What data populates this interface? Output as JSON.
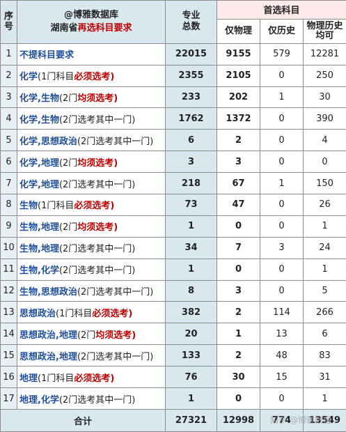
{
  "header": {
    "col_index": "序号",
    "brand_line1": "@博雅数据库",
    "brand_line2_pre": "湖南省",
    "brand_line2_red": "再选科目要求",
    "col_total": "专业总数",
    "group_first": "首选科目",
    "col_physics": "仅物理",
    "col_history": "仅历史",
    "col_both": "物理历史均可"
  },
  "rows": [
    {
      "idx": "1",
      "subj": "不提科目要求",
      "note": "",
      "req": "",
      "total": "22015",
      "physics": "9155",
      "history": "579",
      "both": "12281"
    },
    {
      "idx": "2",
      "subj": "化学",
      "note": "(1门科目",
      "req": "必须选考)",
      "total": "2355",
      "physics": "2105",
      "history": "0",
      "both": "250"
    },
    {
      "idx": "3",
      "subj": "化学,生物",
      "note": "(2门",
      "req": "均须选考)",
      "total": "233",
      "physics": "202",
      "history": "1",
      "both": "30"
    },
    {
      "idx": "4",
      "subj": "化学,生物",
      "note": "(2门选考其中一门)",
      "req": "",
      "total": "1762",
      "physics": "1372",
      "history": "0",
      "both": "390"
    },
    {
      "idx": "5",
      "subj": "化学,思想政治",
      "note": "(2门选考其中一门)",
      "req": "",
      "total": "6",
      "physics": "2",
      "history": "0",
      "both": "4"
    },
    {
      "idx": "6",
      "subj": "化学,地理",
      "note": "(2门",
      "req": "均须选考)",
      "total": "3",
      "physics": "3",
      "history": "0",
      "both": "0"
    },
    {
      "idx": "7",
      "subj": "化学,地理",
      "note": "(2门选考其中一门)",
      "req": "",
      "total": "218",
      "physics": "67",
      "history": "1",
      "both": "150"
    },
    {
      "idx": "8",
      "subj": "生物",
      "note": "(1门科目",
      "req": "必须选考)",
      "total": "73",
      "physics": "47",
      "history": "0",
      "both": "26"
    },
    {
      "idx": "9",
      "subj": "生物,地理",
      "note": "(2门",
      "req": "均须选考)",
      "total": "1",
      "physics": "0",
      "history": "0",
      "both": "1"
    },
    {
      "idx": "10",
      "subj": "生物,地理",
      "note": "(2门选考其中一门)",
      "req": "",
      "total": "34",
      "physics": "7",
      "history": "3",
      "both": "24"
    },
    {
      "idx": "11",
      "subj": "生物,化学",
      "note": "(2门选考其中一门)",
      "req": "",
      "total": "1",
      "physics": "0",
      "history": "0",
      "both": "1"
    },
    {
      "idx": "12",
      "subj": "生物,思想政治",
      "note": "(2门选考其中一门)",
      "req": "",
      "total": "8",
      "physics": "3",
      "history": "0",
      "both": "5"
    },
    {
      "idx": "13",
      "subj": "思想政治",
      "note": "(1门科目",
      "req": "必须选考)",
      "total": "382",
      "physics": "2",
      "history": "114",
      "both": "266"
    },
    {
      "idx": "14",
      "subj": "思想政治,地理",
      "note": "(2门",
      "req": "均须选考)",
      "total": "20",
      "physics": "1",
      "history": "13",
      "both": "6"
    },
    {
      "idx": "15",
      "subj": "思想政治,地理",
      "note": "(2门选考其中一门)",
      "req": "",
      "total": "133",
      "physics": "2",
      "history": "48",
      "both": "83"
    },
    {
      "idx": "16",
      "subj": "地理",
      "note": "(1门科目",
      "req": "必须选考)",
      "total": "76",
      "physics": "30",
      "history": "15",
      "both": "31"
    },
    {
      "idx": "17",
      "subj": "地理,化学",
      "note": "(2门选考其中一门)",
      "req": "",
      "total": "1",
      "physics": "0",
      "history": "0",
      "both": "1"
    }
  ],
  "footer": {
    "label": "合计",
    "total": "27321",
    "physics": "12998",
    "history": "774",
    "both": "13549"
  },
  "watermark": "知乎 @博雅数据"
}
